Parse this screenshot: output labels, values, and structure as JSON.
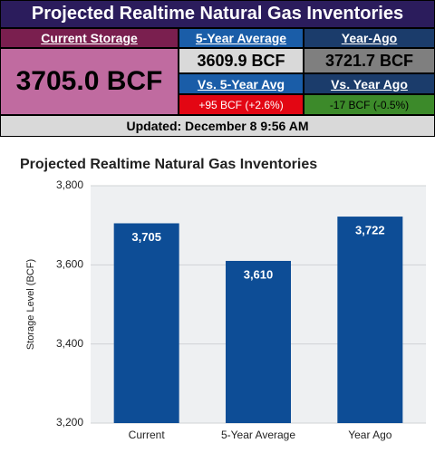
{
  "widget": {
    "title": "Projected Realtime Natural Gas Inventories",
    "current_storage": {
      "label": "Current Storage",
      "value": "3705.0 BCF"
    },
    "five_year_average": {
      "label": "5-Year Average",
      "value": "3609.9 BCF"
    },
    "year_ago": {
      "label": "Year-Ago",
      "value": "3721.7 BCF"
    },
    "vs_five_year": {
      "label": "Vs. 5-Year Avg",
      "value": "+95 BCF (+2.6%)"
    },
    "vs_year_ago": {
      "label": "Vs. Year Ago",
      "value": "-17 BCF (-0.5%)"
    },
    "updated": "Updated: December 8 9:56 AM"
  },
  "chart_data": {
    "type": "bar",
    "title": "Projected Realtime Natural Gas Inventories",
    "ylabel": "Storage Level (BCF)",
    "categories": [
      "Current",
      "5-Year Average",
      "Year Ago"
    ],
    "values": [
      3705,
      3610,
      3722
    ],
    "value_labels": [
      "3,705",
      "3,610",
      "3,722"
    ],
    "color": "#0d4d96",
    "ylim": [
      3200,
      3800
    ],
    "yticks": [
      {
        "value": 3200,
        "label": "3,200"
      },
      {
        "value": 3400,
        "label": "3,400"
      },
      {
        "value": 3600,
        "label": "3,600"
      },
      {
        "value": 3800,
        "label": "3,800"
      }
    ],
    "grid": true
  }
}
